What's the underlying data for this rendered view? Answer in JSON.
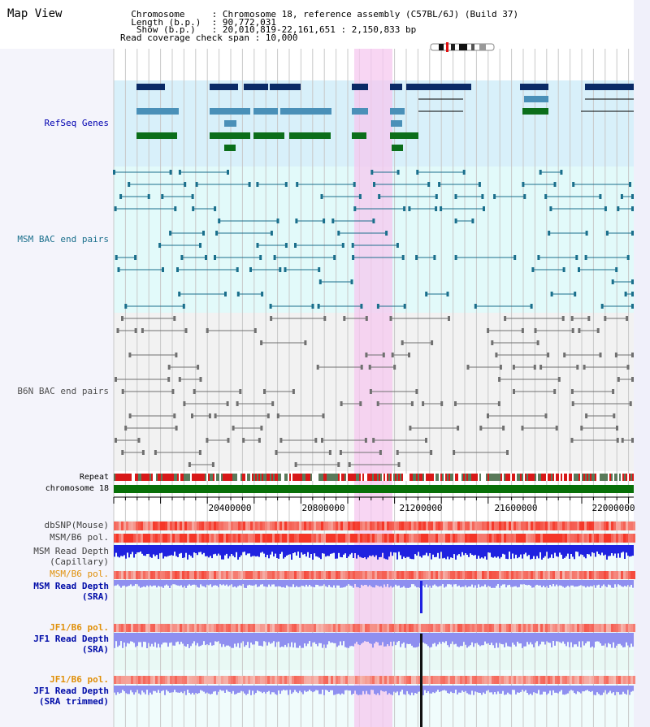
{
  "header": {
    "title": "Map View",
    "info_lines": [
      "  Chromosome     : Chromosome 18, reference assembly (C57BL/6J) (Build 37)",
      "  Length (b.p.)  : 90,772,031",
      "   Show (b.p.)   : 20,010,819-22,161,651 : 2,150,833 bp",
      "Read coverage check span : 10,000"
    ]
  },
  "tracks": {
    "refseq": "RefSeq Genes",
    "msm_bac": "MSM BAC end pairs",
    "b6n_bac": "B6N BAC end pairs",
    "repeat": "Repeat",
    "chromosome": "chromosome 18",
    "dbsnp": "dbSNP(Mouse)",
    "msm_b6_pol_1": "MSM/B6 pol.",
    "msm_depth_cap": [
      "MSM Read Depth",
      "(Capillary)"
    ],
    "msm_b6_pol_2": "MSM/B6 pol.",
    "msm_depth_sra": [
      "MSM Read Depth",
      "(SRA)"
    ],
    "jf1_b6_pol_1": "JF1/B6 pol.",
    "jf1_depth_sra": [
      "JF1 Read Depth",
      "(SRA)"
    ],
    "jf1_b6_pol_2": "JF1/B6 pol.",
    "jf1_depth_trim": [
      "JF1 Read Depth",
      "(SRA trimmed)"
    ]
  },
  "axis": {
    "ticks": [
      "20400000",
      "20800000",
      "21200000",
      "21600000",
      "22000000"
    ]
  },
  "colors": {
    "refseq_dark": "#0a2a66",
    "refseq_mid": "#4a90b8",
    "refseq_green": "#0b6e1a",
    "msm_bac": "#1a6f8c",
    "b6n_bac": "#707070",
    "highlight": "#f6c8ef",
    "depth_blue": "#1f22e0",
    "depth_light": "#8f8ff0",
    "pol_red": "#e8302a",
    "label_orange": "#e0900a",
    "label_blue": "#000ca8"
  }
}
